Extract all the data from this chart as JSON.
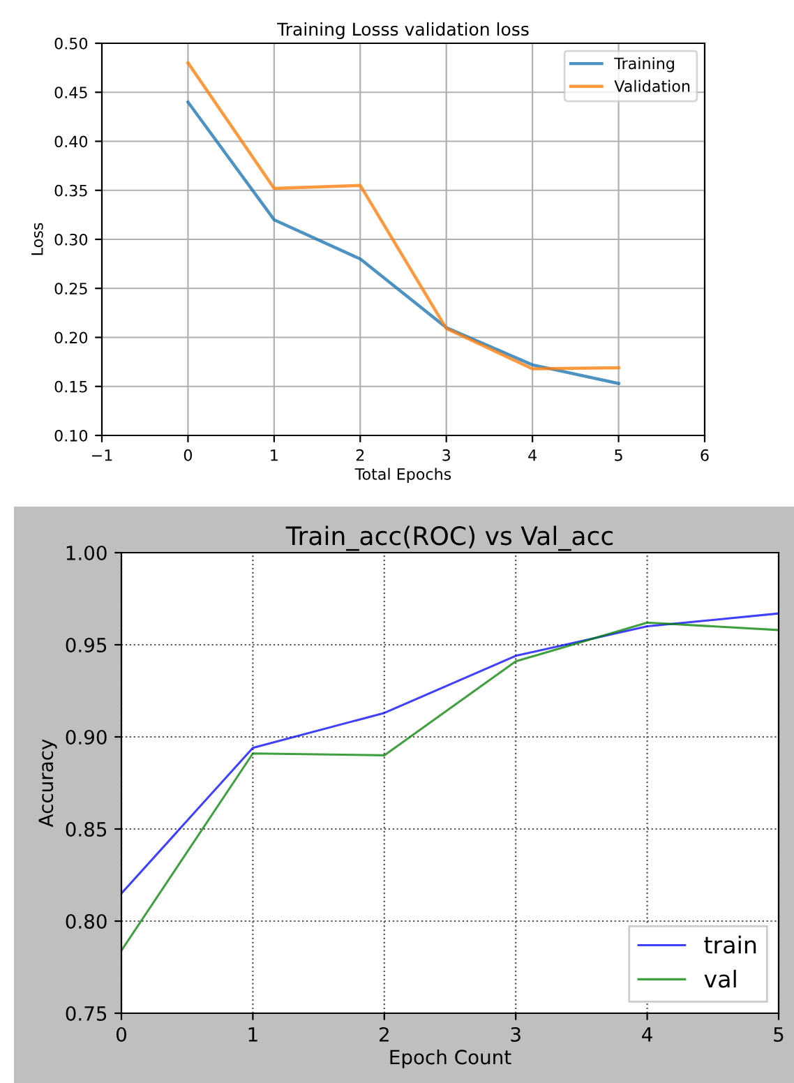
{
  "chart_data": [
    {
      "type": "line",
      "title": "Training Losss validation loss",
      "xlabel": "Total Epochs",
      "ylabel": "Loss",
      "x": [
        0,
        1,
        2,
        3,
        4,
        5
      ],
      "series": [
        {
          "name": "Training",
          "color": "#1f77b4",
          "values": [
            0.44,
            0.32,
            0.28,
            0.21,
            0.172,
            0.153
          ]
        },
        {
          "name": "Validation",
          "color": "#ff7f0e",
          "values": [
            0.48,
            0.352,
            0.355,
            0.209,
            0.168,
            0.169
          ]
        }
      ],
      "xlim": [
        -1,
        6
      ],
      "xticks": [
        {
          "value": -1,
          "label": "−1"
        },
        0,
        1,
        2,
        3,
        4,
        5,
        6
      ],
      "ylim": [
        0.1,
        0.5
      ],
      "yticks": [
        {
          "value": 0.1,
          "label": "0.10"
        },
        0.15,
        {
          "value": 0.2,
          "label": "0.20"
        },
        0.25,
        {
          "value": 0.3,
          "label": "0.30"
        },
        0.35,
        {
          "value": 0.4,
          "label": "0.40"
        },
        0.45,
        {
          "value": 0.5,
          "label": "0.50"
        }
      ],
      "grid": true,
      "legend": "top right"
    },
    {
      "type": "line",
      "title": "Train_acc(ROC) vs Val_acc",
      "xlabel": "Epoch Count",
      "ylabel": "Accuracy",
      "x": [
        0,
        1,
        2,
        3,
        4,
        5
      ],
      "series": [
        {
          "name": "train",
          "color": "#0000ff",
          "values": [
            0.815,
            0.894,
            0.913,
            0.944,
            0.96,
            0.967
          ]
        },
        {
          "name": "val",
          "color": "#008000",
          "values": [
            0.784,
            0.891,
            0.89,
            0.941,
            0.962,
            0.958
          ]
        }
      ],
      "xlim": [
        0,
        5
      ],
      "xticks": [
        0,
        1,
        2,
        3,
        4,
        5
      ],
      "ylim": [
        0.75,
        1.0
      ],
      "yticks": [
        0.75,
        {
          "value": 0.8,
          "label": "0.80"
        },
        0.85,
        {
          "value": 0.9,
          "label": "0.90"
        },
        0.95,
        {
          "value": 1.0,
          "label": "1.00"
        }
      ],
      "grid": true,
      "legend": "bottom right"
    }
  ]
}
